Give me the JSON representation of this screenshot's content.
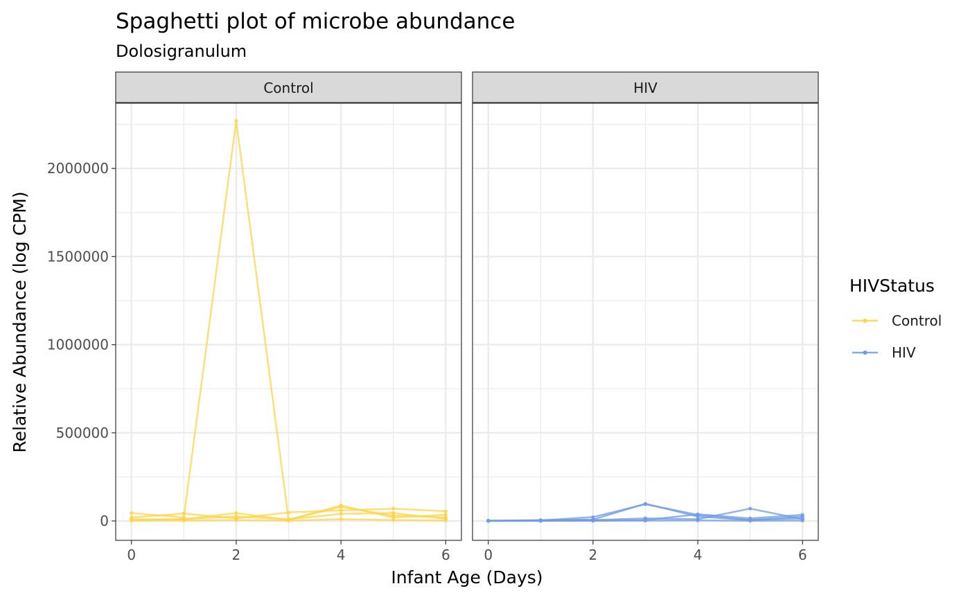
{
  "chart_data": {
    "type": "line",
    "title": "Spaghetti plot of microbe abundance",
    "subtitle": "Dolosigranulum",
    "xlabel": "Infant Age (Days)",
    "ylabel": "Relative Abundance (log CPM)",
    "xlim": [
      -0.3,
      6.3
    ],
    "ylim": [
      -110000,
      2370000
    ],
    "x_ticks": [
      0,
      2,
      4,
      6
    ],
    "x_tick_labels": [
      "0",
      "2",
      "4",
      "6"
    ],
    "y_ticks": [
      0,
      500000,
      1000000,
      1500000,
      2000000
    ],
    "y_tick_labels": [
      "0",
      "500000",
      "1000000",
      "1500000",
      "2000000"
    ],
    "grid": true,
    "facets": [
      "Control",
      "HIV"
    ],
    "legend": {
      "title": "HIVStatus",
      "position": "right",
      "entries": [
        {
          "label": "Control",
          "color": "#FFD447"
        },
        {
          "label": "HIV",
          "color": "#6E9BE6"
        }
      ]
    },
    "series": [
      {
        "facet": "Control",
        "group": "Control",
        "x": [
          0,
          1,
          2,
          3,
          4,
          5,
          6
        ],
        "y": [
          45000,
          20000,
          2270000,
          8000,
          80000,
          30000,
          20000
        ]
      },
      {
        "facet": "Control",
        "group": "Control",
        "x": [
          0,
          1,
          2,
          3,
          4,
          5,
          6
        ],
        "y": [
          20000,
          42000,
          15000,
          48000,
          60000,
          70000,
          55000
        ]
      },
      {
        "facet": "Control",
        "group": "Control",
        "x": [
          0,
          1,
          2,
          3,
          4,
          5,
          6
        ],
        "y": [
          10000,
          8000,
          45000,
          5000,
          88000,
          20000,
          35000
        ]
      },
      {
        "facet": "Control",
        "group": "Control",
        "x": [
          0,
          1,
          2,
          3,
          4,
          5,
          6
        ],
        "y": [
          5000,
          12000,
          25000,
          10000,
          40000,
          45000,
          12000
        ]
      },
      {
        "facet": "Control",
        "group": "Control",
        "x": [
          0,
          1,
          2,
          3,
          4,
          5,
          6
        ],
        "y": [
          2000,
          3000,
          5000,
          2000,
          10000,
          5000,
          3000
        ]
      },
      {
        "facet": "HIV",
        "group": "HIV",
        "x": [
          0,
          1,
          2,
          3,
          4,
          5,
          6
        ],
        "y": [
          1000,
          5000,
          8000,
          98000,
          25000,
          5000,
          15000
        ]
      },
      {
        "facet": "HIV",
        "group": "HIV",
        "x": [
          0,
          1,
          2,
          3,
          4,
          5,
          6
        ],
        "y": [
          500,
          3000,
          22000,
          95000,
          35000,
          5000,
          25000
        ]
      },
      {
        "facet": "HIV",
        "group": "HIV",
        "x": [
          0,
          1,
          2,
          3,
          4,
          5,
          6
        ],
        "y": [
          2000,
          2000,
          5000,
          15000,
          10000,
          70000,
          10000
        ]
      },
      {
        "facet": "HIV",
        "group": "HIV",
        "x": [
          0,
          1,
          2,
          3,
          4,
          5,
          6
        ],
        "y": [
          1000,
          1000,
          3000,
          5000,
          38000,
          15000,
          35000
        ]
      },
      {
        "facet": "HIV",
        "group": "HIV",
        "x": [
          0,
          1,
          2,
          3,
          4,
          5,
          6
        ],
        "y": [
          200,
          500,
          1000,
          2000,
          3000,
          1000,
          2000
        ]
      }
    ]
  }
}
